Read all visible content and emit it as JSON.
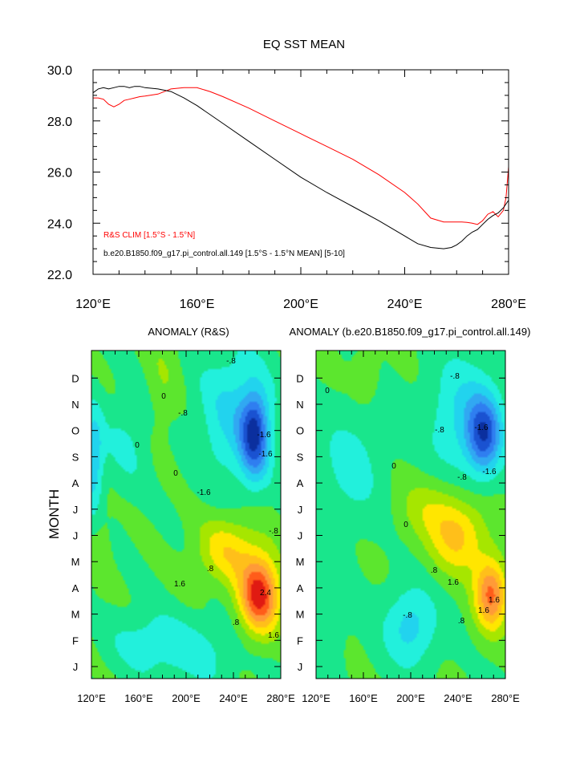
{
  "chart_data": [
    {
      "type": "line",
      "title": "EQ SST MEAN",
      "xlim": [
        120,
        280
      ],
      "ylim": [
        22,
        30
      ],
      "x_ticks": [
        120,
        160,
        200,
        240,
        280
      ],
      "x_tick_labels": [
        "120°E",
        "160°E",
        "200°E",
        "240°E",
        "280°E"
      ],
      "y_ticks": [
        22,
        24,
        26,
        28,
        30
      ],
      "y_tick_labels": [
        "22.0",
        "24.0",
        "26.0",
        "28.0",
        "30.0"
      ],
      "legend": [
        "R&S CLIM [1.5°S - 1.5°N]",
        "b.e20.B1850.f09_g17.pi_control.all.149 [1.5°S - 1.5°N MEAN] [5-10]"
      ],
      "series": [
        {
          "name": "R&S CLIM [1.5°S - 1.5°N]",
          "color": "#ff0000",
          "x": [
            120,
            122,
            124,
            126,
            128,
            130,
            132,
            134,
            136,
            138,
            140,
            145,
            150,
            155,
            160,
            165,
            170,
            180,
            190,
            200,
            210,
            220,
            230,
            240,
            245,
            250,
            255,
            260,
            262,
            264,
            266,
            268,
            270,
            272,
            274,
            276,
            278,
            279,
            280
          ],
          "values": [
            28.9,
            28.9,
            28.85,
            28.65,
            28.55,
            28.65,
            28.8,
            28.85,
            28.9,
            28.95,
            28.97,
            29.05,
            29.25,
            29.3,
            29.3,
            29.15,
            28.95,
            28.5,
            28.0,
            27.5,
            27.0,
            26.5,
            25.9,
            25.2,
            24.75,
            24.2,
            24.05,
            24.05,
            24.05,
            24.03,
            24.0,
            23.95,
            24.1,
            24.35,
            24.45,
            24.25,
            24.5,
            25.0,
            26.2
          ]
        },
        {
          "name": "b.e20.B1850.f09_g17.pi_control.all.149 [1.5°S - 1.5°N MEAN] [5-10]",
          "color": "#000000",
          "x": [
            120,
            122,
            124,
            126,
            128,
            130,
            132,
            134,
            136,
            138,
            140,
            145,
            150,
            155,
            160,
            170,
            180,
            190,
            200,
            210,
            220,
            230,
            240,
            245,
            250,
            255,
            258,
            260,
            262,
            264,
            266,
            268,
            270,
            272,
            274,
            276,
            278,
            280
          ],
          "values": [
            29.1,
            29.25,
            29.3,
            29.25,
            29.3,
            29.35,
            29.35,
            29.3,
            29.35,
            29.35,
            29.3,
            29.25,
            29.15,
            28.9,
            28.6,
            27.9,
            27.2,
            26.5,
            25.8,
            25.2,
            24.65,
            24.1,
            23.5,
            23.2,
            23.05,
            23.0,
            23.05,
            23.15,
            23.3,
            23.5,
            23.65,
            23.75,
            23.95,
            24.15,
            24.3,
            24.4,
            24.6,
            24.9
          ]
        }
      ]
    },
    {
      "type": "heatmap",
      "title": "ANOMALY (R&S)",
      "ylabel": "MONTH",
      "xlim": [
        120,
        280
      ],
      "x_tick_labels": [
        "120°E",
        "160°E",
        "200°E",
        "240°E",
        "280°E"
      ],
      "y_tick_labels": [
        "J",
        "F",
        "M",
        "A",
        "M",
        "J",
        "J",
        "A",
        "S",
        "O",
        "N",
        "D"
      ],
      "contour_labels": [
        "-.8",
        "-.8",
        "-.8",
        "-1.6",
        "-1.6",
        "-1.6",
        "0",
        "0",
        "0",
        ".8",
        ".8",
        "1.6",
        "2.4",
        "1.6"
      ],
      "features": [
        {
          "lon": 262,
          "month": 2.7,
          "anomaly": 2.6
        },
        {
          "lon": 258,
          "month": 8.8,
          "anomaly": -2.1
        },
        {
          "lon": 122,
          "month": 7.8,
          "anomaly": -1.1
        },
        {
          "lon": 165,
          "month": 0.9,
          "anomaly": -0.55
        }
      ]
    },
    {
      "type": "heatmap",
      "title": "ANOMALY (b.e20.B1850.f09_g17.pi_control.all.149)",
      "xlim": [
        120,
        280
      ],
      "x_tick_labels": [
        "120°E",
        "160°E",
        "200°E",
        "240°E",
        "280°E"
      ],
      "y_tick_labels": [
        "J",
        "F",
        "M",
        "A",
        "M",
        "J",
        "J",
        "A",
        "S",
        "O",
        "N",
        "D"
      ],
      "contour_labels": [
        "-.8",
        "-.8",
        "-.8",
        "-1.6",
        "1.6",
        "-1.6",
        "0",
        "0",
        "0",
        ".8",
        ".8",
        "1.6",
        "1.6",
        "-.8"
      ],
      "features": [
        {
          "lon": 268,
          "month": 2.7,
          "anomaly": 2.05
        },
        {
          "lon": 262,
          "month": 8.8,
          "anomaly": -1.85
        },
        {
          "lon": 200,
          "month": 1.5,
          "anomaly": -1.0
        },
        {
          "lon": 162,
          "month": 11.1,
          "anomaly": 0.45
        }
      ]
    }
  ],
  "colors": {
    "anomaly_scale": [
      "#0b2f9e",
      "#1a52d1",
      "#2f7ef0",
      "#31a8f2",
      "#22d3ee",
      "#22f0dc",
      "#19e68c",
      "#5ce62e",
      "#a6e600",
      "#ffe600",
      "#ffbf1a",
      "#ff9a38",
      "#ff5c1a",
      "#e01a12"
    ]
  }
}
